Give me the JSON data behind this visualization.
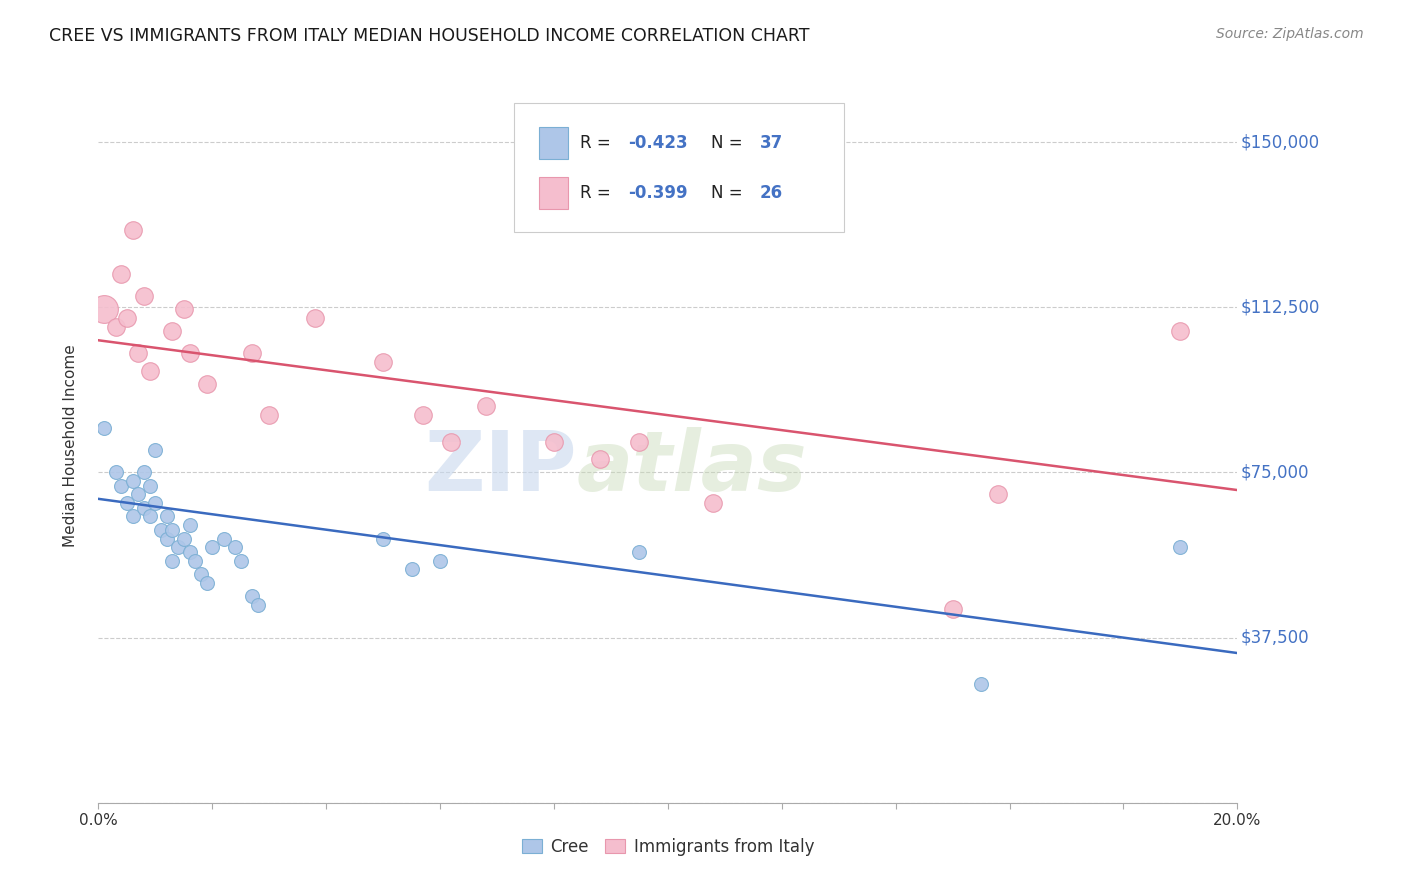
{
  "title": "CREE VS IMMIGRANTS FROM ITALY MEDIAN HOUSEHOLD INCOME CORRELATION CHART",
  "source": "Source: ZipAtlas.com",
  "ylabel": "Median Household Income",
  "watermark_zip": "ZIP",
  "watermark_atlas": "atlas",
  "y_ticks": [
    0,
    37500,
    75000,
    112500,
    150000
  ],
  "y_tick_labels": [
    "",
    "$37,500",
    "$75,000",
    "$112,500",
    "$150,000"
  ],
  "xlim": [
    0.0,
    0.2
  ],
  "ylim": [
    0,
    162000
  ],
  "cree_color": "#aec6e8",
  "cree_edge_color": "#7bafd4",
  "italy_color": "#f5bece",
  "italy_edge_color": "#e897ad",
  "blue_line_color": "#3a6abf",
  "pink_line_color": "#d9546e",
  "cree_x": [
    0.001,
    0.003,
    0.004,
    0.005,
    0.006,
    0.006,
    0.007,
    0.008,
    0.008,
    0.009,
    0.009,
    0.01,
    0.01,
    0.011,
    0.012,
    0.012,
    0.013,
    0.013,
    0.014,
    0.015,
    0.016,
    0.016,
    0.017,
    0.018,
    0.019,
    0.02,
    0.022,
    0.024,
    0.025,
    0.027,
    0.028,
    0.05,
    0.055,
    0.06,
    0.095,
    0.155,
    0.19
  ],
  "cree_y": [
    85000,
    75000,
    72000,
    68000,
    65000,
    73000,
    70000,
    67000,
    75000,
    65000,
    72000,
    80000,
    68000,
    62000,
    60000,
    65000,
    55000,
    62000,
    58000,
    60000,
    57000,
    63000,
    55000,
    52000,
    50000,
    58000,
    60000,
    58000,
    55000,
    47000,
    45000,
    60000,
    53000,
    55000,
    57000,
    27000,
    58000
  ],
  "italy_x": [
    0.001,
    0.003,
    0.004,
    0.005,
    0.006,
    0.007,
    0.008,
    0.009,
    0.013,
    0.015,
    0.016,
    0.019,
    0.027,
    0.03,
    0.038,
    0.05,
    0.057,
    0.062,
    0.068,
    0.08,
    0.088,
    0.095,
    0.108,
    0.15,
    0.158,
    0.19
  ],
  "italy_y": [
    112000,
    108000,
    120000,
    110000,
    130000,
    102000,
    115000,
    98000,
    107000,
    112000,
    102000,
    95000,
    102000,
    88000,
    110000,
    100000,
    88000,
    82000,
    90000,
    82000,
    78000,
    82000,
    68000,
    44000,
    70000,
    107000
  ],
  "large_italy_idx": 0,
  "large_italy_size": 400,
  "cree_marker_size": 100,
  "italy_marker_size": 160,
  "blue_line_x0": 0.0,
  "blue_line_x1": 0.2,
  "blue_line_y0": 69000,
  "blue_line_y1": 34000,
  "pink_line_x0": 0.0,
  "pink_line_x1": 0.2,
  "pink_line_y0": 105000,
  "pink_line_y1": 71000
}
